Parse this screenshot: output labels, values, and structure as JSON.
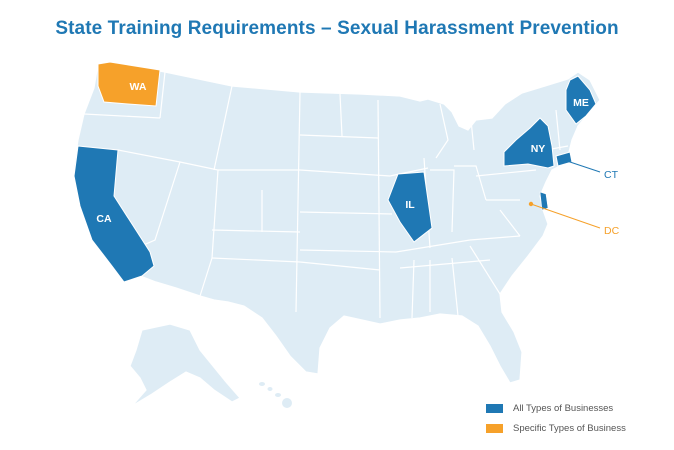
{
  "title": "State Training Requirements – Sexual Harassment Prevention",
  "colors": {
    "base": "#deecf5",
    "border": "#ffffff",
    "all_types": "#1f78b4",
    "specific_types": "#f6a12a"
  },
  "states": {
    "wa": "WA",
    "ca": "CA",
    "il": "IL",
    "ny": "NY",
    "me": "ME"
  },
  "callouts": {
    "ct": "CT",
    "dc": "DC"
  },
  "legend": [
    {
      "label": "All Types of Businesses",
      "color": "#1f78b4"
    },
    {
      "label": "Specific Types of Business",
      "color": "#f6a12a"
    }
  ]
}
